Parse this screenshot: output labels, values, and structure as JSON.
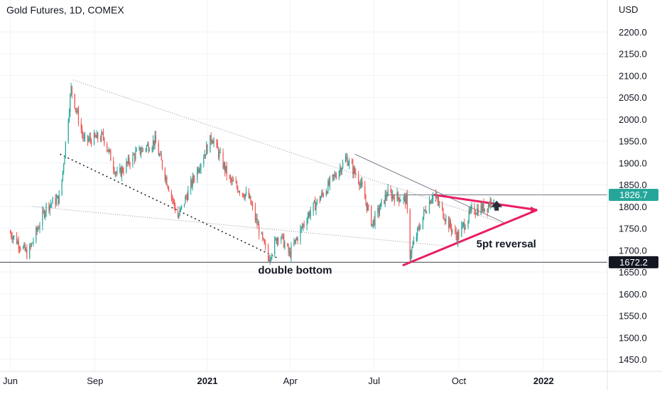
{
  "header": {
    "title": "Gold Futures, 1D, COMEX",
    "currency_badge": "USD"
  },
  "price_labels": {
    "last_price": "1826.7",
    "support_level": "1672.2"
  },
  "colors": {
    "up": "#26a69a",
    "down": "#ef5350",
    "trend_pink": "#e91e63",
    "last_price_bg": "#26a69a",
    "grid": "#f0f3fa",
    "axis_text": "#131722"
  },
  "annotations": {
    "double_bottom": "double bottom",
    "reversal": "5pt reversal"
  },
  "chart_data": {
    "type": "candlestick",
    "title": "Gold Futures, 1D, COMEX",
    "y_axis": {
      "unit": "USD",
      "range": [
        1400,
        2250
      ],
      "ticks": [
        "2200.0",
        "2150.0",
        "2100.0",
        "2050.0",
        "2000.0",
        "1950.0",
        "1900.0",
        "1850.0",
        "1800.0",
        "1750.0",
        "1700.0",
        "1650.0",
        "1600.0",
        "1550.0",
        "1500.0",
        "1450.0"
      ]
    },
    "x_axis": {
      "ticks": [
        "Jun",
        "Sep",
        "2021",
        "Apr",
        "Jul",
        "Oct",
        "2022"
      ]
    },
    "close_path": [
      {
        "date": "2020-06-01",
        "close": 1740
      },
      {
        "date": "2020-06-20",
        "close": 1690
      },
      {
        "date": "2020-07-10",
        "close": 1800
      },
      {
        "date": "2020-07-25",
        "close": 1820
      },
      {
        "date": "2020-08-06",
        "close": 2070
      },
      {
        "date": "2020-08-20",
        "close": 1950
      },
      {
        "date": "2020-09-10",
        "close": 1960
      },
      {
        "date": "2020-09-25",
        "close": 1870
      },
      {
        "date": "2020-10-15",
        "close": 1920
      },
      {
        "date": "2020-11-05",
        "close": 1950
      },
      {
        "date": "2020-11-30",
        "close": 1775
      },
      {
        "date": "2020-12-20",
        "close": 1880
      },
      {
        "date": "2021-01-06",
        "close": 1960
      },
      {
        "date": "2021-01-25",
        "close": 1860
      },
      {
        "date": "2021-02-15",
        "close": 1820
      },
      {
        "date": "2021-03-08",
        "close": 1680
      },
      {
        "date": "2021-03-20",
        "close": 1740
      },
      {
        "date": "2021-03-31",
        "close": 1690
      },
      {
        "date": "2021-04-20",
        "close": 1780
      },
      {
        "date": "2021-05-10",
        "close": 1840
      },
      {
        "date": "2021-06-01",
        "close": 1910
      },
      {
        "date": "2021-06-15",
        "close": 1860
      },
      {
        "date": "2021-06-29",
        "close": 1760
      },
      {
        "date": "2021-07-15",
        "close": 1830
      },
      {
        "date": "2021-08-05",
        "close": 1815
      },
      {
        "date": "2021-08-09",
        "close": 1690
      },
      {
        "date": "2021-08-25",
        "close": 1790
      },
      {
        "date": "2021-09-03",
        "close": 1830
      },
      {
        "date": "2021-09-20",
        "close": 1760
      },
      {
        "date": "2021-09-29",
        "close": 1730
      },
      {
        "date": "2021-10-15",
        "close": 1790
      },
      {
        "date": "2021-11-01",
        "close": 1800
      },
      {
        "date": "2021-11-08",
        "close": 1826.7
      }
    ],
    "levels": [
      {
        "label": "1672.2",
        "value": 1672.2
      },
      {
        "label": "1826.7",
        "value": 1826.7
      }
    ]
  }
}
